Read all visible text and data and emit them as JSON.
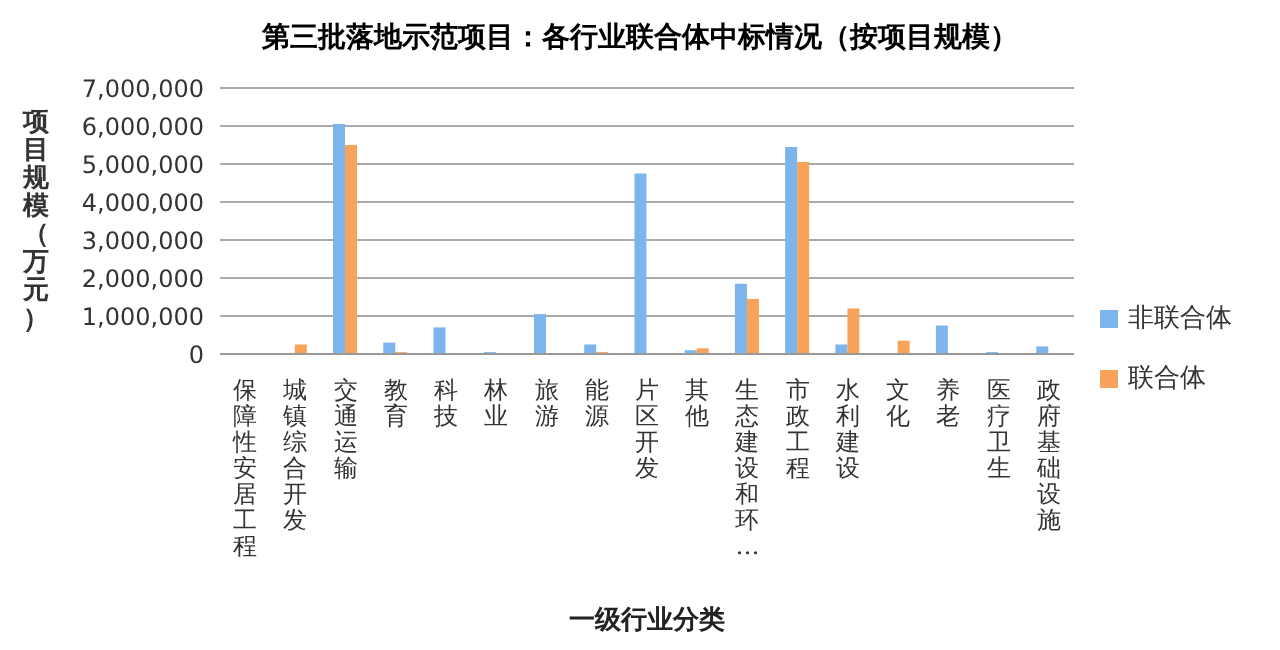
{
  "chart_data": {
    "type": "bar",
    "title": "第三批落地示范项目：各行业联合体中标情况（按项目规模）",
    "xlabel": "一级行业分类",
    "ylabel": "项目规模（万元）",
    "categories": [
      "保障性安居工程",
      "城镇综合开发",
      "交通运输",
      "教育",
      "科技",
      "林业",
      "旅游",
      "能源",
      "片区开发",
      "其他",
      "生态建设和环…",
      "市政工程",
      "水利建设",
      "文化",
      "养老",
      "医疗卫生",
      "政府基础设施"
    ],
    "series": [
      {
        "name": "非联合体",
        "color": "#7cb5ec",
        "values": [
          0,
          0,
          6050000,
          300000,
          700000,
          50000,
          1050000,
          250000,
          4750000,
          100000,
          1850000,
          5450000,
          250000,
          0,
          750000,
          50000,
          200000
        ]
      },
      {
        "name": "联合体",
        "color": "#f7a35c",
        "values": [
          0,
          250000,
          5500000,
          50000,
          0,
          0,
          0,
          50000,
          0,
          150000,
          1450000,
          5050000,
          1200000,
          350000,
          0,
          0,
          0
        ]
      }
    ],
    "ylim": [
      0,
      7000000
    ],
    "yticks": [
      0,
      {
        "value": 1000000,
        "label": "1,000,000"
      },
      {
        "value": 2000000,
        "label": "2,000,000"
      },
      {
        "value": 3000000,
        "label": "3,000,000"
      },
      {
        "value": 4000000,
        "label": "4,000,000"
      },
      {
        "value": 5000000,
        "label": "5,000,000"
      },
      {
        "value": 6000000,
        "label": "6,000,000"
      },
      {
        "value": 7000000,
        "label": "7,000,000"
      }
    ],
    "grid": "y",
    "legend": "right"
  }
}
